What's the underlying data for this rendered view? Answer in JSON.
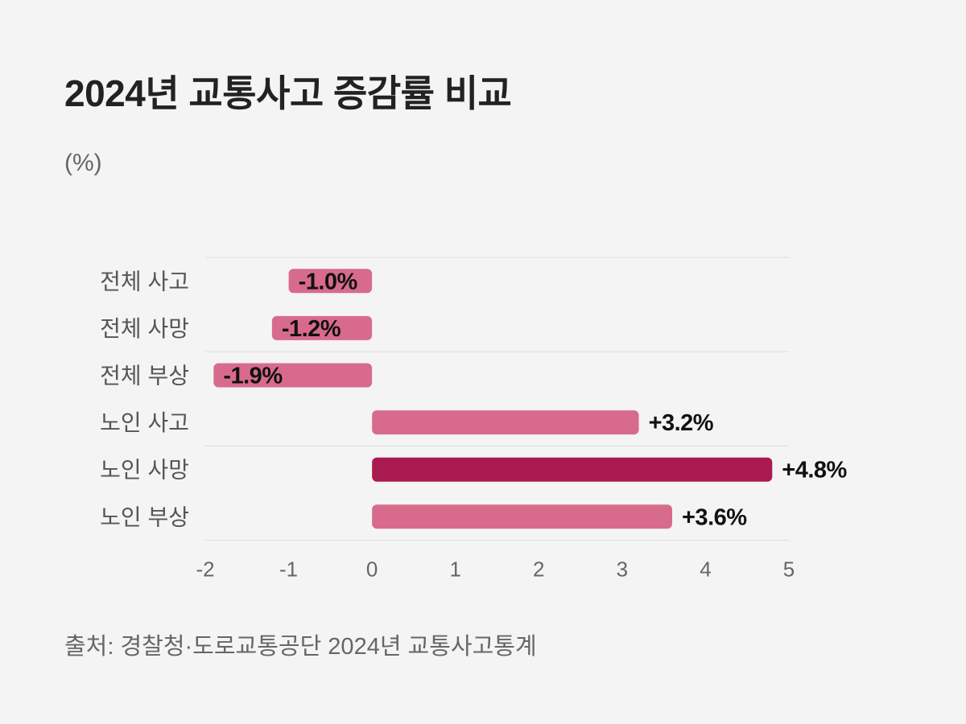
{
  "title": "2024년 교통사고 증감률 비교",
  "unit": "(%)",
  "source": "출처: 경찰청·도로교통공단 2024년 교통사고통계",
  "colors": {
    "bar": "#d86b8c",
    "highlight": "#a91b50",
    "grid": "#dddddd",
    "label": "#555555",
    "tick": "#666666",
    "value": "#111111"
  },
  "chart_data": {
    "type": "bar",
    "orientation": "horizontal",
    "categories": [
      "전체 사고",
      "전체 사망",
      "전체 부상",
      "노인 사고",
      "노인 사망",
      "노인 부상"
    ],
    "values": [
      -1.0,
      -1.2,
      -1.9,
      3.2,
      4.8,
      3.6
    ],
    "value_labels": [
      "-1.0%",
      "-1.2%",
      "-1.9%",
      "+3.2%",
      "+4.8%",
      "+3.6%"
    ],
    "highlight": "노인 사망",
    "xlim": [
      -2,
      5
    ],
    "xticks": [
      "-2",
      "-1",
      "0",
      "1",
      "2",
      "3",
      "4",
      "5"
    ],
    "ylabel": "(%)",
    "grid": true
  }
}
